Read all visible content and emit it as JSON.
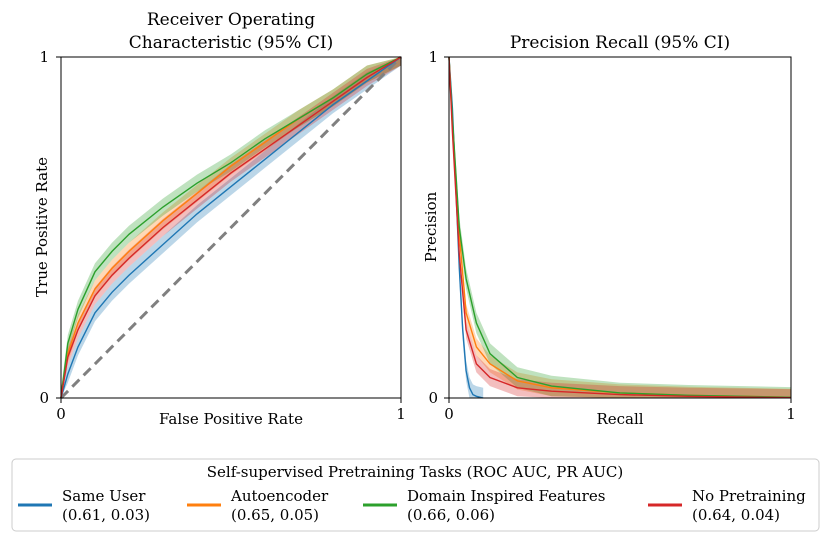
{
  "chart_data": [
    {
      "type": "line",
      "title_line1": "Receiver Operating",
      "title_line2": "Characteristic (95% CI)",
      "xlabel": "False Positive Rate",
      "ylabel": "True Positive Rate",
      "xlim": [
        0,
        1
      ],
      "ylim": [
        0,
        1
      ],
      "x_ticks": [
        "0",
        "1"
      ],
      "y_ticks": [
        "0",
        "1"
      ],
      "x": [
        0,
        0.02,
        0.05,
        0.1,
        0.15,
        0.2,
        0.3,
        0.4,
        0.5,
        0.6,
        0.7,
        0.8,
        0.9,
        1.0
      ],
      "diagonal": {
        "style": "dashed",
        "color": "#808080",
        "from": [
          0,
          0
        ],
        "to": [
          1,
          1
        ]
      },
      "series": [
        {
          "name": "Same User",
          "color": "#1f77b4",
          "values": [
            0,
            0.07,
            0.15,
            0.25,
            0.31,
            0.36,
            0.45,
            0.54,
            0.62,
            0.7,
            0.78,
            0.86,
            0.93,
            1.0
          ],
          "ci": 0.025
        },
        {
          "name": "Autoencoder",
          "color": "#ff7f0e",
          "values": [
            0,
            0.13,
            0.22,
            0.32,
            0.38,
            0.43,
            0.52,
            0.6,
            0.68,
            0.75,
            0.82,
            0.88,
            0.95,
            1.0
          ],
          "ci": 0.025
        },
        {
          "name": "Domain Inspired Features",
          "color": "#2ca02c",
          "values": [
            0,
            0.16,
            0.26,
            0.37,
            0.43,
            0.48,
            0.56,
            0.63,
            0.69,
            0.76,
            0.82,
            0.88,
            0.95,
            1.0
          ],
          "ci": 0.025
        },
        {
          "name": "No Pretraining",
          "color": "#d62728",
          "values": [
            0,
            0.12,
            0.2,
            0.3,
            0.36,
            0.41,
            0.5,
            0.58,
            0.66,
            0.73,
            0.8,
            0.87,
            0.94,
            1.0
          ],
          "ci": 0.025
        }
      ]
    },
    {
      "type": "line",
      "title": "Precision Recall (95% CI)",
      "xlabel": "Recall",
      "ylabel": "Precision",
      "xlim": [
        0,
        1
      ],
      "ylim": [
        0,
        1
      ],
      "x_ticks": [
        "0",
        "1"
      ],
      "y_ticks": [
        "0",
        "1"
      ],
      "series": [
        {
          "name": "Same User",
          "color": "#1f77b4",
          "x": [
            0,
            0.01,
            0.02,
            0.03,
            0.04,
            0.05,
            0.06,
            0.07,
            0.08,
            0.1
          ],
          "values": [
            1.0,
            0.85,
            0.62,
            0.38,
            0.2,
            0.08,
            0.03,
            0.01,
            0.005,
            0
          ],
          "ci": 0.03
        },
        {
          "name": "Autoencoder",
          "color": "#ff7f0e",
          "x": [
            0,
            0.01,
            0.03,
            0.05,
            0.08,
            0.12,
            0.2,
            0.3,
            0.5,
            0.7,
            1.0
          ],
          "values": [
            1.0,
            0.8,
            0.48,
            0.25,
            0.15,
            0.1,
            0.05,
            0.03,
            0.015,
            0.008,
            0.002
          ],
          "ci": 0.025
        },
        {
          "name": "Domain Inspired Features",
          "color": "#2ca02c",
          "x": [
            0,
            0.01,
            0.03,
            0.05,
            0.08,
            0.12,
            0.2,
            0.3,
            0.5,
            0.7,
            1.0
          ],
          "values": [
            1.0,
            0.82,
            0.5,
            0.35,
            0.22,
            0.13,
            0.06,
            0.035,
            0.015,
            0.008,
            0.002
          ],
          "ci": 0.03
        },
        {
          "name": "No Pretraining",
          "color": "#d62728",
          "x": [
            0,
            0.01,
            0.03,
            0.05,
            0.08,
            0.12,
            0.2,
            0.3,
            0.5,
            0.7,
            1.0
          ],
          "values": [
            1.0,
            0.78,
            0.42,
            0.2,
            0.1,
            0.06,
            0.03,
            0.02,
            0.01,
            0.005,
            0.001
          ],
          "ci": 0.025
        }
      ]
    }
  ],
  "legend": {
    "title": "Self-supervised Pretraining Tasks (ROC AUC, PR AUC)",
    "placement": "bottom",
    "items": [
      {
        "label": "Same User",
        "sub": "(0.61, 0.03)",
        "color": "#1f77b4"
      },
      {
        "label": "Autoencoder",
        "sub": "(0.65, 0.05)",
        "color": "#ff7f0e"
      },
      {
        "label": "Domain Inspired Features",
        "sub": "(0.66, 0.06)",
        "color": "#2ca02c"
      },
      {
        "label": "No Pretraining",
        "sub": "(0.64, 0.04)",
        "color": "#d62728"
      }
    ]
  }
}
